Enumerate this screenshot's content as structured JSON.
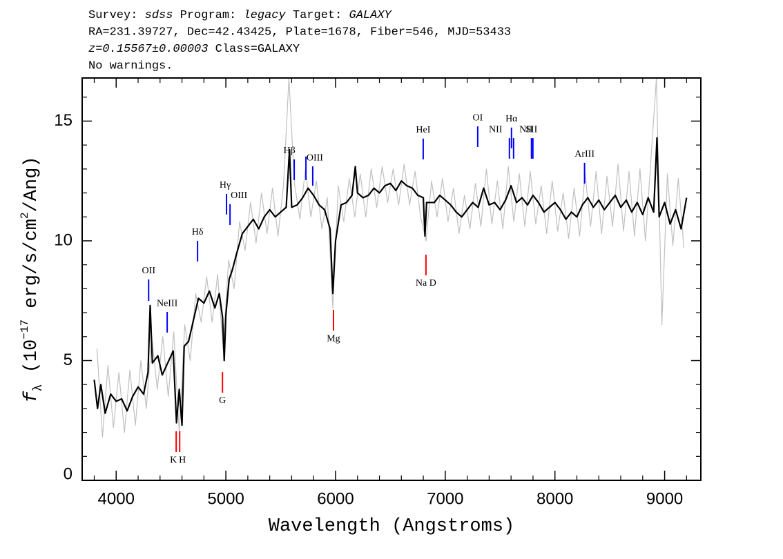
{
  "chart_data": {
    "type": "line",
    "header": [
      [
        {
          "text": "Survey: "
        },
        {
          "text": "sdss",
          "italic": true
        },
        {
          "text": " Program: "
        },
        {
          "text": "legacy",
          "italic": true
        },
        {
          "text": " Target: "
        },
        {
          "text": "GALAXY",
          "italic": true
        }
      ],
      [
        {
          "text": "RA=231.39727, Dec=42.43425, Plate=1678, Fiber=546, MJD=53433"
        }
      ],
      [
        {
          "text": "z=0.15567±0.00003",
          "italic": true
        },
        {
          "text": " Class=GALAXY"
        }
      ],
      [
        {
          "text": "No warnings."
        }
      ]
    ],
    "xlabel": "Wavelength (Angstroms)",
    "ylabel": [
      {
        "text": "f"
      },
      {
        "text": "λ",
        "shift": "sub"
      },
      {
        "text": " (10"
      },
      {
        "text": "−17",
        "shift": "sup"
      },
      {
        "text": " erg/s/cm"
      },
      {
        "text": "2",
        "shift": "sup"
      },
      {
        "text": "/Ang)"
      }
    ],
    "xlim": [
      3690,
      9330
    ],
    "ylim": [
      0,
      16.8
    ],
    "xticks": [
      4000,
      5000,
      6000,
      7000,
      8000,
      9000
    ],
    "yticks": [
      0,
      5,
      10,
      15
    ],
    "xminorticks": [
      3800,
      4200,
      4400,
      4600,
      4800,
      5200,
      5400,
      5600,
      5800,
      6200,
      6400,
      6600,
      6800,
      7200,
      7400,
      7600,
      7800,
      8200,
      8400,
      8600,
      8800,
      9200
    ],
    "yminorticks": [
      1,
      2,
      3,
      4,
      6,
      7,
      8,
      9,
      11,
      12,
      13,
      14,
      16
    ],
    "series": [
      {
        "color": "#c0c0c0",
        "x": [
          3825,
          3875,
          3925,
          3975,
          4025,
          4075,
          4125,
          4175,
          4225,
          4275,
          4325,
          4375,
          4425,
          4475,
          4525,
          4575,
          4625,
          4675,
          4725,
          4775,
          4825,
          4875,
          4925,
          4975,
          5025,
          5075,
          5125,
          5175,
          5225,
          5275,
          5325,
          5375,
          5425,
          5475,
          5525,
          5575,
          5625,
          5675,
          5725,
          5775,
          5825,
          5875,
          5925,
          5975,
          6025,
          6075,
          6125,
          6175,
          6225,
          6275,
          6325,
          6375,
          6425,
          6475,
          6525,
          6575,
          6625,
          6675,
          6725,
          6775,
          6825,
          6875,
          6925,
          6975,
          7025,
          7075,
          7125,
          7175,
          7225,
          7275,
          7325,
          7375,
          7425,
          7475,
          7525,
          7575,
          7625,
          7675,
          7725,
          7775,
          7825,
          7875,
          7925,
          7975,
          8025,
          8075,
          8125,
          8175,
          8225,
          8275,
          8325,
          8375,
          8425,
          8475,
          8525,
          8575,
          8625,
          8675,
          8725,
          8775,
          8825,
          8875,
          8925,
          8975,
          9025,
          9075,
          9125,
          9175
        ],
        "values": [
          5.5,
          1.8,
          4.8,
          2.2,
          4.5,
          2.0,
          4.6,
          2.3,
          5.0,
          3.0,
          6.0,
          3.8,
          6.0,
          3.5,
          6.2,
          2.0,
          6.5,
          5.0,
          7.8,
          6.6,
          8.5,
          6.6,
          8.6,
          5.5,
          9.2,
          8.0,
          10.8,
          9.6,
          11.6,
          9.9,
          12.0,
          10.3,
          12.2,
          10.2,
          12.3,
          16.8,
          12.4,
          10.9,
          13.0,
          11.0,
          12.5,
          10.5,
          11.8,
          7.2,
          12.3,
          10.8,
          12.6,
          11.0,
          12.8,
          11.0,
          13.0,
          11.4,
          13.1,
          11.6,
          13.0,
          11.5,
          13.2,
          11.5,
          12.9,
          11.0,
          10.0,
          12.5,
          11.0,
          12.6,
          10.8,
          12.2,
          10.3,
          11.9,
          10.5,
          12.4,
          10.6,
          13.0,
          10.7,
          12.5,
          10.5,
          13.1,
          10.8,
          12.8,
          10.6,
          12.9,
          10.7,
          12.3,
          10.3,
          12.5,
          10.4,
          12.0,
          10.1,
          12.2,
          10.2,
          12.8,
          10.6,
          12.9,
          10.3,
          12.7,
          10.6,
          13.2,
          10.4,
          12.9,
          10.2,
          13.0,
          10.0,
          13.4,
          16.8,
          6.5,
          12.8,
          9.8,
          12.6,
          9.7
        ]
      },
      {
        "color": "#000000",
        "x": [
          3800,
          3830,
          3860,
          3900,
          3950,
          4000,
          4050,
          4100,
          4150,
          4200,
          4250,
          4290,
          4310,
          4330,
          4380,
          4420,
          4470,
          4520,
          4550,
          4575,
          4600,
          4620,
          4660,
          4700,
          4750,
          4800,
          4850,
          4900,
          4940,
          4970,
          4985,
          5000,
          5030,
          5060,
          5100,
          5150,
          5200,
          5250,
          5300,
          5350,
          5400,
          5450,
          5500,
          5550,
          5580,
          5600,
          5650,
          5700,
          5750,
          5800,
          5850,
          5900,
          5950,
          5975,
          6000,
          6050,
          6100,
          6150,
          6180,
          6200,
          6250,
          6300,
          6350,
          6400,
          6450,
          6500,
          6550,
          6600,
          6650,
          6700,
          6750,
          6800,
          6815,
          6830,
          6900,
          6950,
          7000,
          7050,
          7100,
          7150,
          7200,
          7250,
          7300,
          7350,
          7400,
          7450,
          7500,
          7550,
          7600,
          7650,
          7700,
          7750,
          7800,
          7850,
          7900,
          7950,
          8000,
          8050,
          8100,
          8150,
          8200,
          8250,
          8300,
          8350,
          8400,
          8450,
          8500,
          8550,
          8600,
          8650,
          8700,
          8750,
          8800,
          8850,
          8900,
          8930,
          8950,
          9000,
          9050,
          9100,
          9150,
          9200
        ],
        "values": [
          4.2,
          3.0,
          4.0,
          2.8,
          3.6,
          3.3,
          3.4,
          2.9,
          3.5,
          3.9,
          3.6,
          4.5,
          7.3,
          4.9,
          5.2,
          4.4,
          4.9,
          5.4,
          2.4,
          3.8,
          2.3,
          5.6,
          5.8,
          6.6,
          7.6,
          7.4,
          7.9,
          7.2,
          7.8,
          6.8,
          5.0,
          6.9,
          8.4,
          8.8,
          9.5,
          10.3,
          10.6,
          10.9,
          10.5,
          11.0,
          11.3,
          11.0,
          11.2,
          11.4,
          13.8,
          11.4,
          11.5,
          11.8,
          12.2,
          11.9,
          11.5,
          11.3,
          10.5,
          7.8,
          10.0,
          11.5,
          11.6,
          11.9,
          13.1,
          12.0,
          11.8,
          11.9,
          12.2,
          12.0,
          12.3,
          12.4,
          12.1,
          12.5,
          12.3,
          12.2,
          11.9,
          11.8,
          10.2,
          11.6,
          11.6,
          11.9,
          11.7,
          11.5,
          11.2,
          11.0,
          11.3,
          11.6,
          11.4,
          12.2,
          11.5,
          11.6,
          11.3,
          11.7,
          12.3,
          11.6,
          11.8,
          11.5,
          11.9,
          11.6,
          11.2,
          11.4,
          11.6,
          11.3,
          10.9,
          11.2,
          11.0,
          11.5,
          11.8,
          11.4,
          11.7,
          11.3,
          11.6,
          11.9,
          11.4,
          11.7,
          11.2,
          11.6,
          11.1,
          11.8,
          11.2,
          14.3,
          11.0,
          11.6,
          10.7,
          11.3,
          10.5,
          11.8
        ]
      }
    ],
    "lines": [
      {
        "label": "OII",
        "wavelength": 4296,
        "ymin": 7.49,
        "ymax": 8.39,
        "color": "#0000ff",
        "kind": "emission"
      },
      {
        "label": "NeIII",
        "wavelength": 4465,
        "ymin": 6.17,
        "ymax": 7.03,
        "color": "#0000ff",
        "kind": "emission"
      },
      {
        "label": "Hδ",
        "wavelength": 4742,
        "ymin": 9.14,
        "ymax": 10.0,
        "color": "#0000ff",
        "kind": "emission"
      },
      {
        "label": "Hγ",
        "wavelength": 5006,
        "ymin": 11.1,
        "ymax": 11.96,
        "color": "#0000ff",
        "kind": "emission"
      },
      {
        "label": "OIII",
        "wavelength": 5038,
        "ymin": 10.66,
        "ymax": 11.53,
        "color": "#0000ff",
        "kind": "emission"
      },
      {
        "label": "Hβ",
        "wavelength": 5623,
        "ymin": 12.54,
        "ymax": 13.4,
        "color": "#0000ff",
        "kind": "emission"
      },
      {
        "label": null,
        "wavelength": 5730,
        "ymin": 12.54,
        "ymax": 13.52,
        "color": "#0000ff",
        "kind": "emission"
      },
      {
        "label": "OIII",
        "wavelength": 5792,
        "ymin": 12.3,
        "ymax": 13.11,
        "color": "#0000ff",
        "kind": "emission"
      },
      {
        "label": "HeI",
        "wavelength": 6799,
        "ymin": 13.4,
        "ymax": 14.27,
        "color": "#0000ff",
        "kind": "emission"
      },
      {
        "label": "OI",
        "wavelength": 7296,
        "ymin": 13.92,
        "ymax": 14.78,
        "color": "#0000ff",
        "kind": "emission"
      },
      {
        "label": "NII",
        "wavelength": 7585,
        "ymin": 13.43,
        "ymax": 14.29,
        "color": "#0000ff",
        "kind": "emission"
      },
      {
        "label": "Hα",
        "wavelength": 7604,
        "ymin": 13.86,
        "ymax": 14.73,
        "color": "#0000ff",
        "kind": "emission"
      },
      {
        "label": "NII",
        "wavelength": 7623,
        "ymin": 13.43,
        "ymax": 14.29,
        "color": "#0000ff",
        "kind": "emission"
      },
      {
        "label": null,
        "wavelength": 7786,
        "ymin": 13.43,
        "ymax": 14.29,
        "color": "#0000ff",
        "kind": "emission"
      },
      {
        "label": "SII",
        "wavelength": 7799,
        "ymin": 13.43,
        "ymax": 14.29,
        "color": "#0000ff",
        "kind": "emission"
      },
      {
        "label": "ArIII",
        "wavelength": 8270,
        "ymin": 12.39,
        "ymax": 13.26,
        "color": "#0000ff",
        "kind": "emission"
      },
      {
        "label": "K",
        "wavelength": 4547,
        "ymin": 1.18,
        "ymax": 2.05,
        "color": "#ff0000",
        "kind": "absorption"
      },
      {
        "label": "H",
        "wavelength": 4579,
        "ymin": 1.18,
        "ymax": 2.05,
        "color": "#ff0000",
        "kind": "absorption"
      },
      {
        "label": "G",
        "wavelength": 4969,
        "ymin": 3.66,
        "ymax": 4.52,
        "color": "#ff0000",
        "kind": "absorption"
      },
      {
        "label": "Mg",
        "wavelength": 5981,
        "ymin": 6.25,
        "ymax": 7.12,
        "color": "#ff0000",
        "kind": "absorption"
      },
      {
        "label": "Na D",
        "wavelength": 6824,
        "ymin": 8.56,
        "ymax": 9.42,
        "color": "#ff0000",
        "kind": "absorption"
      }
    ]
  }
}
